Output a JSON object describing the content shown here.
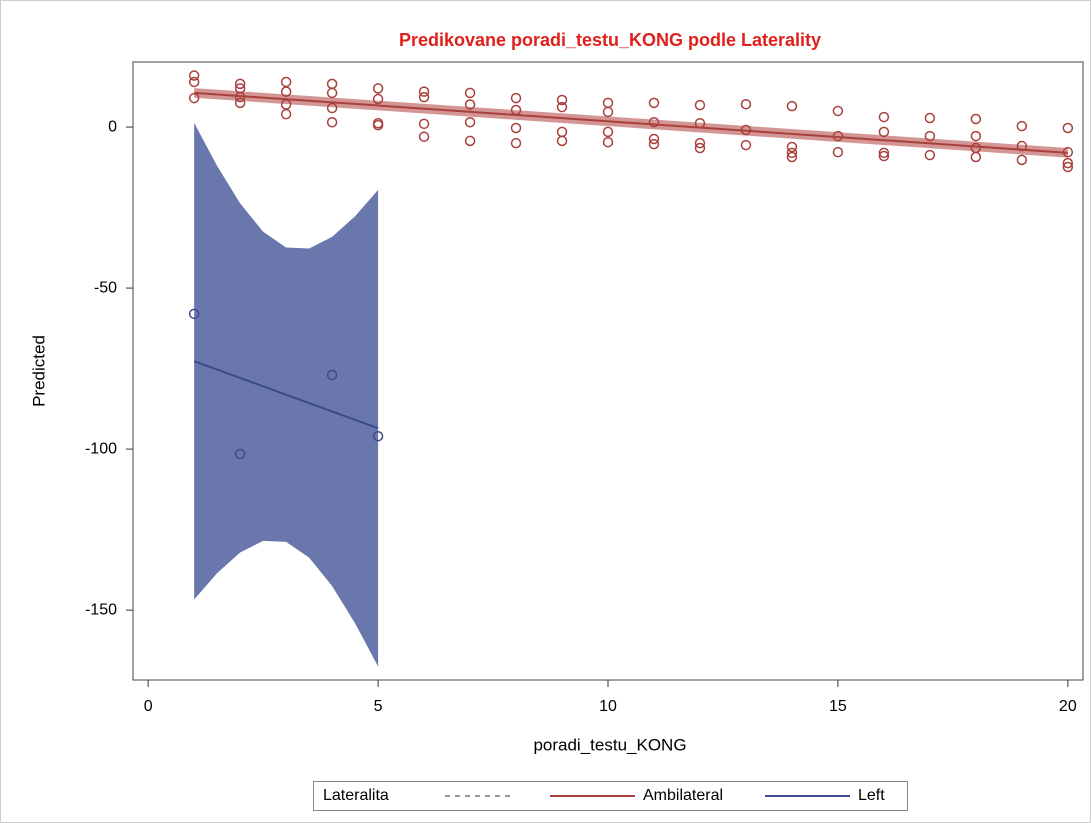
{
  "chart_data": {
    "type": "scatter",
    "title": "Predikovane poradi_testu_KONG podle Laterality",
    "xlabel": "poradi_testu_KONG",
    "ylabel": "Predicted",
    "xlim": [
      -0.33,
      20.33
    ],
    "ylim": [
      -171.7,
      20.2
    ],
    "xticks": [
      0,
      5,
      10,
      15,
      20
    ],
    "yticks": [
      0,
      -50,
      -100,
      -150
    ],
    "legend_title": "Lateralita",
    "series": [
      {
        "name": "Ambilateral",
        "color": "#a8403c",
        "band_color": "rgba(176,64,60,0.55)",
        "x": [
          1,
          1,
          1,
          2,
          2,
          2,
          2,
          3,
          3,
          3,
          3,
          4,
          4,
          4,
          4,
          5,
          5,
          5,
          5,
          6,
          6,
          6,
          6,
          7,
          7,
          7,
          7,
          8,
          8,
          8,
          8,
          9,
          9,
          9,
          9,
          10,
          10,
          10,
          10,
          11,
          11,
          11,
          11,
          12,
          12,
          12,
          12,
          13,
          13,
          13,
          14,
          14,
          14,
          14,
          15,
          15,
          15,
          16,
          16,
          16,
          16,
          17,
          17,
          17,
          18,
          18,
          18,
          18,
          19,
          19,
          19,
          20,
          20,
          20,
          20
        ],
        "values": [
          16,
          14,
          9,
          13.4,
          12,
          9.3,
          7.5,
          14,
          11,
          7,
          4,
          13.4,
          10.6,
          5.9,
          1.5,
          12,
          8.7,
          1.2,
          0.6,
          11,
          9.3,
          1,
          -3,
          10.6,
          7,
          1.5,
          -4.3,
          9,
          5.3,
          -0.3,
          -5,
          8.4,
          6.2,
          -1.5,
          -4.3,
          7.5,
          4.7,
          -1.5,
          -4.7,
          7.5,
          1.5,
          -3.7,
          -5.3,
          6.8,
          1.2,
          -5,
          -6.5,
          7.1,
          -0.9,
          -5.6,
          6.5,
          -6.2,
          -8,
          -9.3,
          5,
          -2.8,
          -7.8,
          3.1,
          -1.5,
          -8,
          -9,
          2.8,
          -2.8,
          -8.7,
          2.5,
          -2.8,
          -6.5,
          -9.3,
          0.3,
          -5.9,
          -10.2,
          -0.3,
          -7.8,
          -11.2,
          -12.4
        ],
        "fit": {
          "x": [
            1,
            20
          ],
          "values": [
            10.6,
            -8
          ],
          "upper": [
            12.1,
            -6.5
          ],
          "lower": [
            9.1,
            -9.5
          ]
        }
      },
      {
        "name": "Left",
        "color": "#3c4a8c",
        "band_color": "#6a77ad",
        "x": [
          1,
          2,
          4,
          5
        ],
        "values": [
          -58,
          -101.5,
          -77,
          -96
        ],
        "fit": {
          "x": [
            1,
            1.5,
            2,
            2.5,
            3,
            3.5,
            4,
            4.5,
            5
          ],
          "values": [
            -72.7,
            -75.3,
            -77.9,
            -80.5,
            -83.1,
            -85.7,
            -88.3,
            -90.9,
            -93.5
          ],
          "upper": [
            1.3,
            -12.1,
            -23.7,
            -32.5,
            -37.4,
            -37.7,
            -34.1,
            -27.7,
            -19.5
          ],
          "lower": [
            -146.7,
            -138.5,
            -132.1,
            -128.5,
            -128.8,
            -133.7,
            -142.5,
            -154.1,
            -167.5
          ]
        }
      }
    ]
  }
}
